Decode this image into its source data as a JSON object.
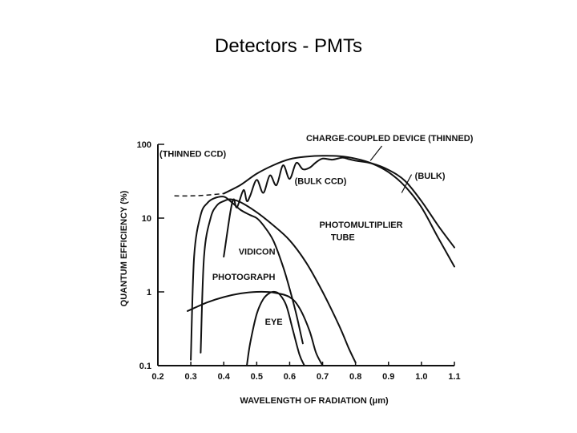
{
  "slide": {
    "title": "Detectors  - PMTs"
  },
  "chart_data": {
    "type": "line",
    "title": "",
    "xlabel": "WAVELENGTH OF RADIATION (μm)",
    "ylabel": "QUANTUM EFFICIENCY (%)",
    "xlim": [
      0.2,
      1.1
    ],
    "ylim": [
      0.1,
      100
    ],
    "yscale": "log",
    "grid": false,
    "x_ticks": [
      "0.2",
      "0.3",
      "0.4",
      "0.5",
      "0.6",
      "0.7",
      "0.8",
      "0.9",
      "1.0",
      "1.1"
    ],
    "y_ticks": [
      "0.1",
      "1",
      "10",
      "100"
    ],
    "annotations": {
      "ccd_thinned_top": "CHARGE-COUPLED DEVICE (THINNED)",
      "thinned_ccd": "(THINNED CCD)",
      "bulk": "(BULK)",
      "bulk_ccd": "(BULK CCD)",
      "vidicon": "VIDICON",
      "pmt_line1": "PHOTOMULTIPLIER",
      "pmt_line2": "TUBE",
      "photograph": "PHOTOGRAPH",
      "eye": "EYE"
    },
    "series": [
      {
        "key": "thinned_ccd",
        "x": [
          0.25,
          0.3,
          0.35,
          0.4,
          0.45,
          0.5,
          0.55,
          0.6,
          0.65,
          0.7,
          0.75,
          0.8,
          0.85,
          0.9,
          0.95,
          1.0,
          1.05,
          1.1
        ],
        "y": [
          20,
          20,
          20.5,
          21.5,
          28,
          40,
          52,
          63,
          68,
          70,
          69,
          64,
          55,
          42,
          27,
          14,
          5.5,
          2.2
        ],
        "dashed_until_x": 0.4
      },
      {
        "key": "bulk_ccd",
        "x": [
          0.4,
          0.42,
          0.43,
          0.44,
          0.46,
          0.47,
          0.48,
          0.5,
          0.52,
          0.54,
          0.56,
          0.58,
          0.6,
          0.62,
          0.64,
          0.66,
          0.68,
          0.7,
          0.73,
          0.76,
          0.78,
          0.8,
          0.85,
          0.9,
          0.95,
          1.0,
          1.05,
          1.1
        ],
        "y": [
          3,
          12,
          18,
          14,
          24,
          17,
          20,
          33,
          22,
          38,
          28,
          52,
          34,
          56,
          46,
          48,
          57,
          64,
          62,
          66,
          63,
          60,
          55,
          45,
          32,
          17,
          8,
          4
        ]
      },
      {
        "key": "vidicon",
        "x": [
          0.3,
          0.31,
          0.33,
          0.35,
          0.37,
          0.4,
          0.42,
          0.45,
          0.48,
          0.5,
          0.52,
          0.55,
          0.58,
          0.6,
          0.62,
          0.64
        ],
        "y": [
          0.12,
          3,
          11,
          16,
          18.5,
          19.5,
          17,
          13,
          11,
          10,
          8,
          5,
          2.2,
          1.1,
          0.5,
          0.2
        ]
      },
      {
        "key": "photomultiplier_tube",
        "x": [
          0.33,
          0.34,
          0.36,
          0.38,
          0.4,
          0.42,
          0.45,
          0.5,
          0.55,
          0.6,
          0.65,
          0.7,
          0.75,
          0.78,
          0.8
        ],
        "y": [
          0.15,
          3,
          10,
          15,
          17,
          18,
          16.5,
          12,
          8,
          5,
          2.5,
          1,
          0.35,
          0.17,
          0.11
        ]
      },
      {
        "key": "photograph",
        "x": [
          0.29,
          0.35,
          0.4,
          0.45,
          0.5,
          0.55,
          0.6,
          0.63,
          0.66,
          0.68,
          0.7
        ],
        "y": [
          0.55,
          0.72,
          0.85,
          0.95,
          1.0,
          0.98,
          0.85,
          0.6,
          0.3,
          0.15,
          0.1
        ]
      },
      {
        "key": "eye",
        "x": [
          0.47,
          0.48,
          0.5,
          0.52,
          0.54,
          0.555,
          0.57,
          0.59,
          0.61,
          0.63,
          0.645
        ],
        "y": [
          0.1,
          0.2,
          0.5,
          0.8,
          0.97,
          1.0,
          0.92,
          0.65,
          0.3,
          0.14,
          0.1
        ]
      }
    ]
  }
}
